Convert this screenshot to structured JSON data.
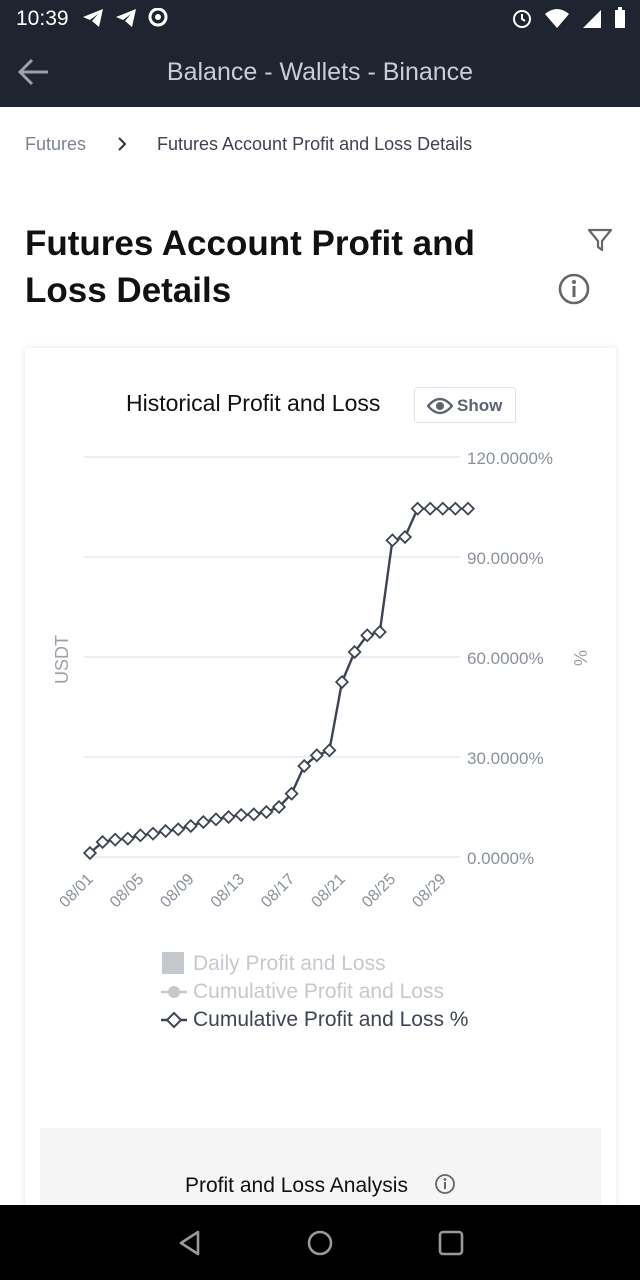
{
  "status_bar": {
    "time": "10:39",
    "left_icons": "telegram-icon telegram-icon chat-icon",
    "right_icons": "alarm-icon wifi-icon signal-icon battery-icon"
  },
  "app_bar": {
    "title": "Balance - Wallets - Binance"
  },
  "breadcrumb": {
    "parent": "Futures",
    "current": "Futures Account Profit and Loss Details"
  },
  "page": {
    "title": "Futures Account Profit and Loss Details"
  },
  "chart_card": {
    "title": "Historical Profit and Loss",
    "show_label": "Show"
  },
  "chart_data": {
    "type": "line",
    "title": "Historical Profit and Loss",
    "ylabel_left": "USDT",
    "ylabel_right": "%",
    "y_ticks": [
      "120.0000%",
      "90.0000%",
      "60.0000%",
      "30.0000%",
      "0.0000%"
    ],
    "y_tick_values": [
      120,
      90,
      60,
      30,
      0
    ],
    "ylim": [
      0,
      120
    ],
    "x_tick_labels": [
      "08/01",
      "08/05",
      "08/09",
      "08/13",
      "08/17",
      "08/21",
      "08/25",
      "08/29"
    ],
    "x_tick_index": [
      0,
      4,
      8,
      12,
      16,
      20,
      24,
      28
    ],
    "grid": true,
    "legend_position": "bottom",
    "series": [
      {
        "name": "Cumulative Profit and Loss %",
        "x": [
          "08/01",
          "08/02",
          "08/03",
          "08/04",
          "08/05",
          "08/06",
          "08/07",
          "08/08",
          "08/09",
          "08/10",
          "08/11",
          "08/12",
          "08/13",
          "08/14",
          "08/15",
          "08/16",
          "08/17",
          "08/18",
          "08/19",
          "08/20",
          "08/21",
          "08/22",
          "08/23",
          "08/24",
          "08/25",
          "08/26",
          "08/27",
          "08/28",
          "08/29",
          "08/30",
          "08/31"
        ],
        "values": [
          1.2,
          4.5,
          5.2,
          5.5,
          6.5,
          7.0,
          7.8,
          8.3,
          9.3,
          10.5,
          11.3,
          12.0,
          12.6,
          12.8,
          13.5,
          15.0,
          19.0,
          27.3,
          30.5,
          32.0,
          52.5,
          61.5,
          66.5,
          67.5,
          95.0,
          96.0,
          104.5,
          104.5,
          104.5,
          104.5,
          104.5
        ]
      }
    ],
    "legend": [
      {
        "label": "Daily Profit and Loss",
        "active": false
      },
      {
        "label": "Cumulative Profit and Loss",
        "active": false
      },
      {
        "label": "Cumulative Profit and Loss %",
        "active": true
      }
    ]
  },
  "analysis": {
    "label": "Profit and Loss Analysis"
  },
  "colors": {
    "line": "#3d4454",
    "grid": "#e8eaed",
    "muted": "#c5c9ce",
    "dark_bar": "#1f2530"
  }
}
